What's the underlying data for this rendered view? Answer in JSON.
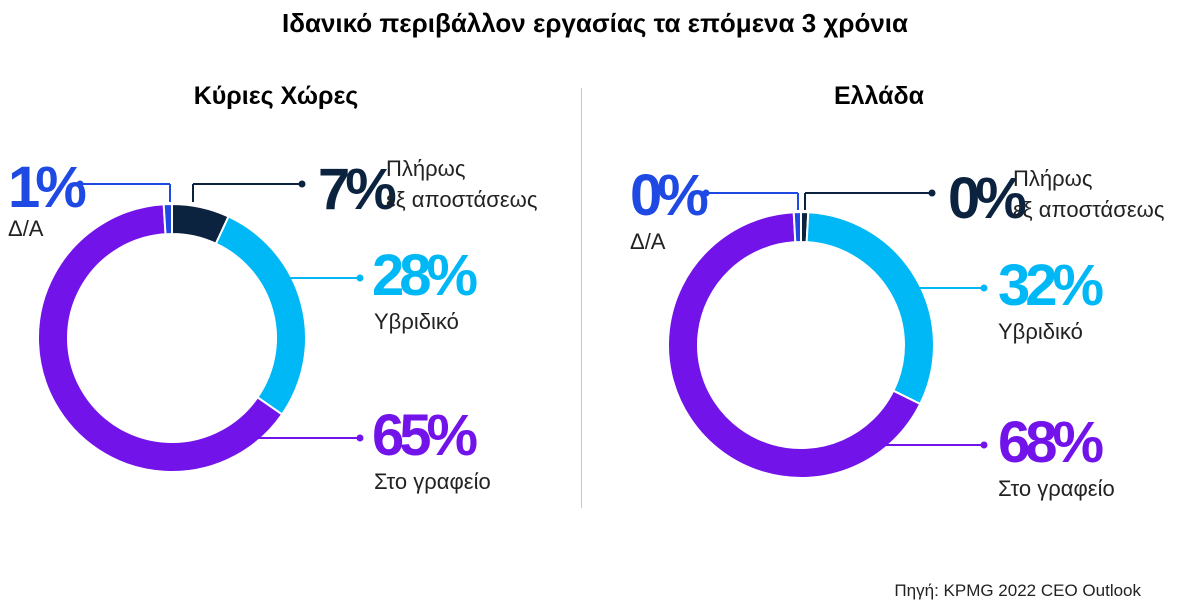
{
  "title": "Ιδανικό περιβάλλον εργασίας τα επόμενα 3 χρόνια",
  "source": "Πηγή: KPMG 2022 CEO Outlook",
  "colors": {
    "remote": "#0c2340",
    "hybrid": "#00b8f5",
    "office": "#7213ea",
    "na": "#1e49e2"
  },
  "chart_data": [
    {
      "type": "pie",
      "title": "Κύριες Χώρες",
      "slices": [
        {
          "key": "remote",
          "label_lines": [
            "Πλήρως",
            "εξ αποστάσεως"
          ],
          "value": 7,
          "display": "7%"
        },
        {
          "key": "hybrid",
          "label_lines": [
            "Υβριδικό"
          ],
          "value": 28,
          "display": "28%"
        },
        {
          "key": "office",
          "label_lines": [
            "Στο γραφείο"
          ],
          "value": 65,
          "display": "65%"
        },
        {
          "key": "na",
          "label_lines": [
            "Δ/Α"
          ],
          "value": 1,
          "display": "1%"
        }
      ]
    },
    {
      "type": "pie",
      "title": "Ελλάδα",
      "slices": [
        {
          "key": "remote",
          "label_lines": [
            "Πλήρως",
            "εξ αποστάσεως"
          ],
          "value": 0,
          "display": "0%"
        },
        {
          "key": "hybrid",
          "label_lines": [
            "Υβριδικό"
          ],
          "value": 32,
          "display": "32%"
        },
        {
          "key": "office",
          "label_lines": [
            "Στο γραφείο"
          ],
          "value": 68,
          "display": "68%"
        },
        {
          "key": "na",
          "label_lines": [
            "Δ/Α"
          ],
          "value": 0,
          "display": "0%"
        }
      ]
    }
  ]
}
